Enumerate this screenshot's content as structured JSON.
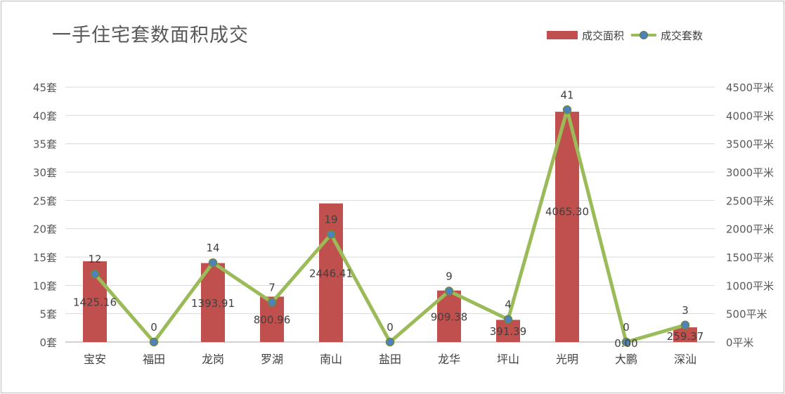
{
  "chart_data": {
    "type": "bar",
    "title": "一手住宅套数面积成交",
    "categories": [
      "宝安",
      "福田",
      "龙岗",
      "罗湖",
      "南山",
      "盐田",
      "龙华",
      "坪山",
      "光明",
      "大鹏",
      "深汕"
    ],
    "series": [
      {
        "name": "成交面积",
        "chart_type": "bar",
        "axis": "right",
        "values": [
          1425.16,
          0,
          1393.91,
          800.96,
          2446.41,
          0,
          909.38,
          391.39,
          4065.3,
          0.0,
          259.37
        ],
        "labels": [
          "1425.16",
          "",
          "1393.91",
          "800.96",
          "2446.41",
          "",
          "909.38",
          "391.39",
          "4065.30",
          "0.00",
          "259.37"
        ],
        "color": "#c0504d"
      },
      {
        "name": "成交套数",
        "chart_type": "line",
        "axis": "left",
        "values": [
          12,
          0,
          14,
          7,
          19,
          0,
          9,
          4,
          41,
          0,
          3
        ],
        "labels": [
          "12",
          "0",
          "14",
          "7",
          "19",
          "0",
          "9",
          "4",
          "41",
          "0",
          "3"
        ],
        "color": "#9bbb59",
        "marker_color": "#4f81bd"
      }
    ],
    "y_left": {
      "ylim": [
        0,
        45
      ],
      "ticks": [
        "0套",
        "5套",
        "10套",
        "15套",
        "20套",
        "25套",
        "30套",
        "35套",
        "40套",
        "45套"
      ]
    },
    "y_right": {
      "ylim": [
        0,
        4500
      ],
      "ticks": [
        "0平米",
        "500平米",
        "1000平米",
        "1500平米",
        "2000平米",
        "2500平米",
        "3000平米",
        "3500平米",
        "4000平米",
        "4500平米"
      ]
    },
    "grid": true,
    "legend": "top-right"
  }
}
